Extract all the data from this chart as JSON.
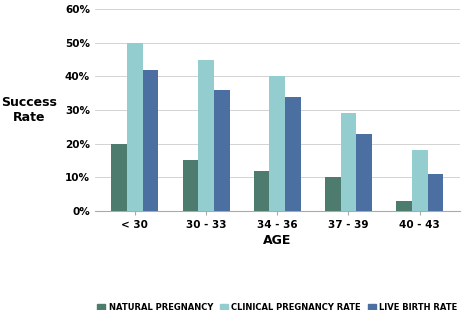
{
  "categories": [
    "< 30",
    "30 - 33",
    "34 - 36",
    "37 - 39",
    "40 - 43"
  ],
  "series": {
    "Natural pregnancy": [
      20,
      15,
      12,
      10,
      3
    ],
    "Clinical pregnancy rate": [
      50,
      45,
      40,
      29,
      18
    ],
    "Live birth rate": [
      42,
      36,
      34,
      23,
      11
    ]
  },
  "colors": {
    "Natural pregnancy": "#4d7b6e",
    "Clinical pregnancy rate": "#93cdd0",
    "Live birth rate": "#4a6fa0"
  },
  "ylabel_line1": "Success",
  "ylabel_line2": "Rate",
  "xlabel": "AGE",
  "ylim": [
    0,
    60
  ],
  "yticks": [
    0,
    10,
    20,
    30,
    40,
    50,
    60
  ],
  "ytick_labels": [
    "0%",
    "10%",
    "20%",
    "30%",
    "40%",
    "50%",
    "60%"
  ],
  "background_color": "#ffffff",
  "plot_bg_color": "#ffffff",
  "bar_width": 0.22,
  "legend_labels": [
    "Natural pregnancy",
    "Clinical pregnancy rate",
    "Live birth rate"
  ],
  "grid_color": "#cccccc",
  "spine_color": "#aaaaaa"
}
